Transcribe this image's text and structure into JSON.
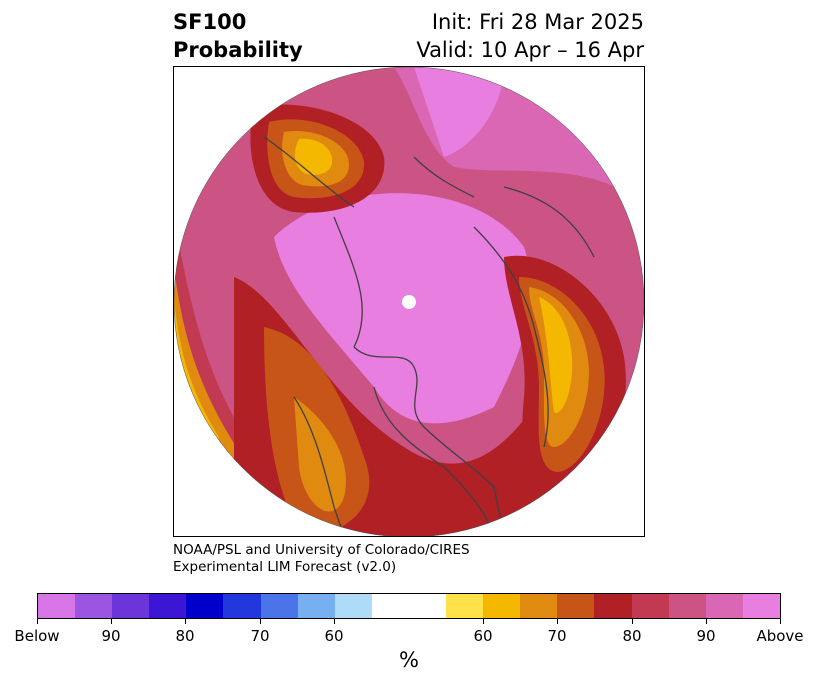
{
  "header": {
    "title_line1": "SF100",
    "title_line2": "Probability",
    "init": "Init: Fri 28 Mar 2025",
    "valid": "Valid: 10 Apr – 16 Apr"
  },
  "credit": {
    "line1": "NOAA/PSL and University of Colorado/CIRES",
    "line2": "Experimental LIM Forecast (v2.0)"
  },
  "colorbar": {
    "colors": [
      "#d774e6",
      "#9b55e0",
      "#6c35d9",
      "#3b16d5",
      "#0000cc",
      "#2338dc",
      "#4b74e8",
      "#76b0f0",
      "#aedcf8",
      "#ffffff",
      "#ffe14a",
      "#f4b800",
      "#e08a10",
      "#c85518",
      "#b02024",
      "#c23a52",
      "#cc5484",
      "#d967b3",
      "#e77ee0"
    ],
    "labels": [
      "Below",
      "90",
      "80",
      "70",
      "60",
      "60",
      "70",
      "80",
      "90",
      "Above"
    ],
    "unit": "%"
  }
}
